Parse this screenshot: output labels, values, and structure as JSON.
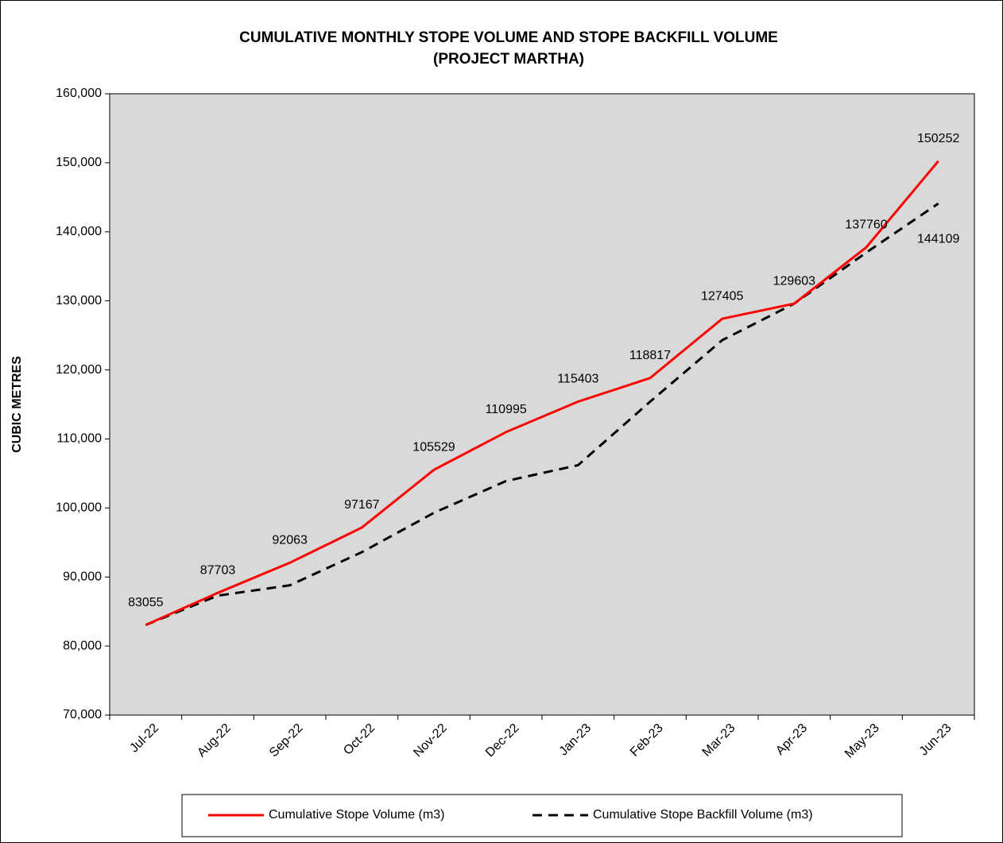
{
  "chart_data": {
    "type": "line",
    "title": "CUMULATIVE MONTHLY STOPE VOLUME AND STOPE BACKFILL VOLUME",
    "subtitle": "(PROJECT MARTHA)",
    "y_label": "CUBIC METRES",
    "categories": [
      "Jul-22",
      "Aug-22",
      "Sep-22",
      "Oct-22",
      "Nov-22",
      "Dec-22",
      "Jan-23",
      "Feb-23",
      "Mar-23",
      "Apr-23",
      "May-23",
      "Jun-23"
    ],
    "series": [
      {
        "name": "Cumulative Stope Volume (m3)",
        "color": "#ff0000",
        "dash": "solid",
        "values": [
          83055,
          87703,
          92063,
          97167,
          105529,
          110995,
          115403,
          118817,
          127405,
          129603,
          137760,
          150252
        ],
        "value_labels": [
          "83055",
          "87703",
          "92063",
          "97167",
          "105529",
          "110995",
          "115403",
          "118817",
          "127405",
          "129603",
          "137760",
          "150252"
        ]
      },
      {
        "name": "Cumulative Stope Backfill Volume (m3)",
        "color": "#000000",
        "dash": "dashed",
        "values": [
          83055,
          87300,
          88800,
          93600,
          99300,
          103900,
          106200,
          115400,
          124300,
          129603,
          137000,
          144109
        ],
        "value_labels": [
          null,
          null,
          null,
          null,
          null,
          null,
          null,
          null,
          null,
          null,
          null,
          "144109"
        ]
      }
    ],
    "ylim": [
      70000,
      160000
    ],
    "yticks": [
      {
        "value": 70000,
        "label": "70,000"
      },
      {
        "value": 80000,
        "label": "80,000"
      },
      {
        "value": 90000,
        "label": "90,000"
      },
      {
        "value": 100000,
        "label": "100,000"
      },
      {
        "value": 110000,
        "label": "110,000"
      },
      {
        "value": 120000,
        "label": "120,000"
      },
      {
        "value": 130000,
        "label": "130,000"
      },
      {
        "value": 140000,
        "label": "140,000"
      },
      {
        "value": 150000,
        "label": "150,000"
      },
      {
        "value": 160000,
        "label": "160,000"
      }
    ],
    "legend": "bottom"
  }
}
